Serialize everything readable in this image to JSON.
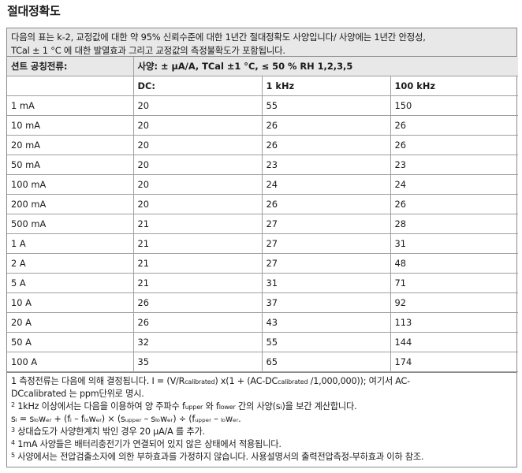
{
  "title": "절대정확도",
  "intro": {
    "line1": "다음의 표는 k-2, 교정값에 대한 약 95% 신뢰수준에 대한 1년간 절대정확도 사양입니다/ 사양에는 1년간 안정성,",
    "line2": "TCal ± 1 °C 에 대한 발열효과 그리고 교정값의 측정불확도가 포함됩니다."
  },
  "table": {
    "shunt_label": "션트 공칭전류:",
    "spec_label": "사양: ± μA/A, TCal ±1 °C, ≤ 50 % RH 1,2,3,5",
    "headers": [
      "",
      "DC:",
      "1 kHz",
      "100 kHz"
    ],
    "rows": [
      [
        "1 mA",
        "20",
        "55",
        "150"
      ],
      [
        "10 mA",
        "20",
        "26",
        "26"
      ],
      [
        "20 mA",
        "20",
        "26",
        "26"
      ],
      [
        "50 mA",
        "20",
        "23",
        "23"
      ],
      [
        "100 mA",
        "20",
        "24",
        "24"
      ],
      [
        "200 mA",
        "20",
        "26",
        "26"
      ],
      [
        "500 mA",
        "21",
        "27",
        "28"
      ],
      [
        "1 A",
        "21",
        "27",
        "31"
      ],
      [
        "2 A",
        "21",
        "27",
        "48"
      ],
      [
        "5 A",
        "21",
        "31",
        "71"
      ],
      [
        "10 A",
        "26",
        "37",
        "92"
      ],
      [
        "20 A",
        "26",
        "43",
        "113"
      ],
      [
        "50 A",
        "32",
        "55",
        "144"
      ],
      [
        "100 A",
        "35",
        "65",
        "174"
      ]
    ]
  },
  "notes": {
    "n1a": "1 측정전류는 다음에 의해 결정됩니다. I = (V/R",
    "n1_sub": "calibrated",
    "n1b": ") x(1 + (AC-DC",
    "n1_sub2": "calibrated",
    "n1c": " /1,000,000)); 여기서 AC-",
    "n1d": "DCcalibrated 는 ppm단위로 명시.",
    "n2_num": "2",
    "n2a": " 1kHz 이상에서는 다음을 이용하여 양 주파수 f",
    "n2_sub1": "upper",
    "n2b": " 와 f",
    "n2_sub2": "lower",
    "n2c": " 간의 사양(s",
    "n2_sub3": "i",
    "n2d": ")을 보간 계산합니다.",
    "formula": "sᵢ = sₗₒwₑᵣ + (fᵢ – fₗₒwₑᵣ) × (sᵤₚₚₑᵣ – sₗₒwₑᵣ) ÷ (fᵤₚₚₑᵣ – ₗₒwₑᵣ.",
    "n3_num": "3",
    "n3": " 상대습도가 사양한계치 밖인 경우 20 μA/A 를 추가.",
    "n4_num": "4",
    "n4": " 1mA 사양들은 배터리충전기가 연결되어 있지 않은 상태에서 적용됩니다.",
    "n5_num": "5",
    "n5": " 사양에서는 전압검출소자에 의한 부하효과를 가정하지 않습니다. 사용설명서의 출력전압측정-부하효과 이하 참조."
  }
}
